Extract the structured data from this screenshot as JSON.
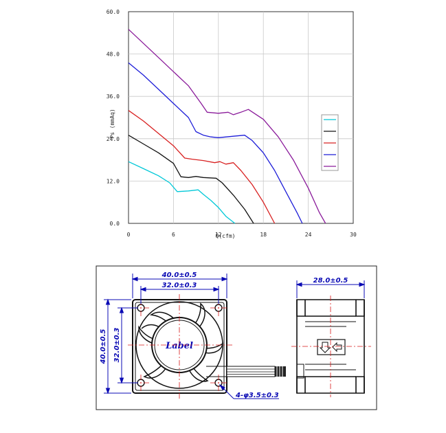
{
  "chart_data": {
    "type": "line",
    "xlabel": "Q(cfm)",
    "ylabel": "Ps (mmAq)",
    "xlim": [
      0,
      30
    ],
    "ylim": [
      0,
      60
    ],
    "x_ticks": [
      "0",
      "6",
      "12",
      "18",
      "24",
      "30"
    ],
    "y_ticks": [
      "0.0",
      "12.0",
      "24.0",
      "36.0",
      "48.0",
      "60.0"
    ],
    "grid": true,
    "legend_position": "right",
    "series": [
      {
        "color": "#00c8d8",
        "x": [
          0,
          2,
          4,
          5.5,
          6.5,
          8,
          9.3,
          10,
          11,
          12,
          13,
          14.2
        ],
        "y": [
          17.5,
          15.5,
          13.5,
          11.5,
          9,
          9.2,
          9.5,
          8.2,
          6.5,
          4.5,
          2,
          0
        ]
      },
      {
        "color": "#111111",
        "x": [
          0,
          2,
          4,
          6,
          7,
          8,
          9,
          10,
          11.7,
          12.5,
          14,
          15.5,
          16.7
        ],
        "y": [
          25,
          22.5,
          20,
          17,
          13.2,
          13,
          13.3,
          13,
          12.8,
          11.5,
          8,
          4,
          0
        ]
      },
      {
        "color": "#d82020",
        "x": [
          0,
          2,
          4,
          6,
          7.5,
          8.5,
          10,
          11.5,
          12.2,
          13,
          14,
          15,
          16.5,
          18,
          19.5
        ],
        "y": [
          32,
          29,
          25.5,
          22,
          18.5,
          18.2,
          17.8,
          17.2,
          17.5,
          16.8,
          17.2,
          15,
          11,
          6,
          0
        ]
      },
      {
        "color": "#1c1cd8",
        "x": [
          0,
          2,
          4,
          6,
          8,
          9,
          10,
          11,
          12,
          14,
          15.5,
          16.5,
          18,
          19.5,
          21,
          22.5,
          23.2
        ],
        "y": [
          45.5,
          42,
          38,
          34,
          30,
          26,
          25,
          24.5,
          24.3,
          24.7,
          25,
          23.5,
          20,
          15,
          9,
          3,
          0
        ]
      },
      {
        "color": "#8a1a9a",
        "x": [
          0,
          2,
          4,
          6,
          8,
          9.7,
          10.5,
          12,
          13.3,
          14,
          15,
          16,
          18,
          20,
          22,
          24,
          25.5,
          26.3
        ],
        "y": [
          55,
          51,
          47,
          43,
          39,
          34,
          31.5,
          31.2,
          31.5,
          30.8,
          31.5,
          32.3,
          29.5,
          24.5,
          18,
          10,
          3,
          0
        ]
      }
    ]
  },
  "drawing": {
    "front_view": {
      "outer_width": "40.0±0.5",
      "hole_width": "32.0±0.3",
      "outer_height": "40.0±0.5",
      "hole_height": "32.0±0.3",
      "label_text": "Label",
      "hole_note": "4-φ3.5±0.3"
    },
    "side_view": {
      "depth": "28.0±0.5"
    },
    "line_color": "#0a0ab4",
    "center_line_color": "#d81818"
  }
}
